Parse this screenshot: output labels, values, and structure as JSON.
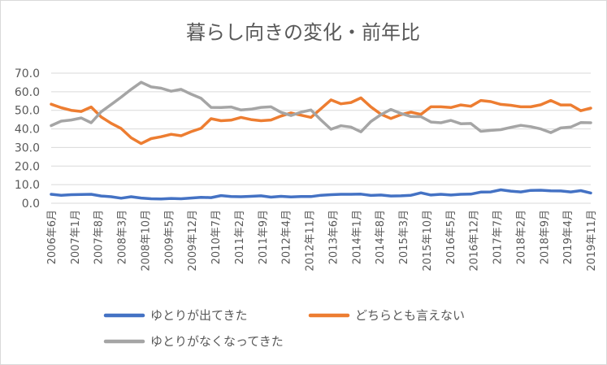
{
  "chart_data": {
    "type": "line",
    "title": "暮らし向きの変化・前年比",
    "xlabel": "",
    "ylabel": "",
    "ylim": [
      0,
      70
    ],
    "yticks": [
      "0.0",
      "10.0",
      "20.0",
      "30.0",
      "40.0",
      "50.0",
      "60.0",
      "70.0"
    ],
    "x_tick_labels": [
      "2006年6月",
      "2007年1月",
      "2007年8月",
      "2008年3月",
      "2008年10月",
      "2009年5月",
      "2009年12月",
      "2010年7月",
      "2011年2月",
      "2011年9月",
      "2012年4月",
      "2012年11月",
      "2013年6月",
      "2014年1月",
      "2014年8月",
      "2015年3月",
      "2015年10月",
      "2016年5月",
      "2016年12月",
      "2017年7月",
      "2018年2月",
      "2018年9月",
      "2019年4月",
      "2019年11月"
    ],
    "legend_position": "bottom",
    "series": [
      {
        "name": "ゆとりが出てきた",
        "color": "#4472c4",
        "values": [
          4.8,
          4.3,
          4.6,
          4.7,
          4.8,
          3.9,
          3.5,
          2.7,
          3.5,
          2.8,
          2.4,
          2.3,
          2.6,
          2.4,
          2.8,
          3.2,
          3.0,
          4.1,
          3.6,
          3.5,
          3.7,
          4.0,
          3.3,
          3.7,
          3.4,
          3.6,
          3.6,
          4.3,
          4.6,
          4.8,
          4.8,
          4.9,
          4.2,
          4.4,
          3.9,
          4.0,
          4.3,
          5.6,
          4.4,
          4.8,
          4.4,
          4.8,
          4.9,
          6.0,
          6.1,
          7.2,
          6.5,
          6.1,
          6.9,
          7.0,
          6.7,
          6.6,
          6.1,
          6.8,
          5.5
        ]
      },
      {
        "name": "どちらとも言えない",
        "color": "#ed7d31",
        "values": [
          53.3,
          51.4,
          50.0,
          49.4,
          51.8,
          46.4,
          43.0,
          40.2,
          35.2,
          32.1,
          34.8,
          35.8,
          37.1,
          36.3,
          38.5,
          40.3,
          45.5,
          44.4,
          44.7,
          46.2,
          45.0,
          44.4,
          44.8,
          46.9,
          48.6,
          47.4,
          46.2,
          50.9,
          55.6,
          53.5,
          54.2,
          56.7,
          51.8,
          47.9,
          45.6,
          47.7,
          49.0,
          47.8,
          51.9,
          51.9,
          51.5,
          52.9,
          52.2,
          55.3,
          54.7,
          53.2,
          52.7,
          51.9,
          51.9,
          53.0,
          55.3,
          52.9,
          52.9,
          49.8,
          51.2
        ]
      },
      {
        "name": "ゆとりがなくなってきた",
        "color": "#a5a5a5",
        "values": [
          41.8,
          44.2,
          44.8,
          45.9,
          43.3,
          49.2,
          53.1,
          57.1,
          61.3,
          65.1,
          62.6,
          61.9,
          60.3,
          61.3,
          58.7,
          56.5,
          51.6,
          51.5,
          51.8,
          50.2,
          50.6,
          51.6,
          51.9,
          48.9,
          47.2,
          49.0,
          50.2,
          44.8,
          39.8,
          41.7,
          41.0,
          38.4,
          44.0,
          47.7,
          50.5,
          48.3,
          46.7,
          46.6,
          43.7,
          43.3,
          44.6,
          42.8,
          42.9,
          38.7,
          39.2,
          39.6,
          40.8,
          41.9,
          41.2,
          40.0,
          38.0,
          40.5,
          41.0,
          43.4,
          43.3
        ]
      }
    ]
  }
}
